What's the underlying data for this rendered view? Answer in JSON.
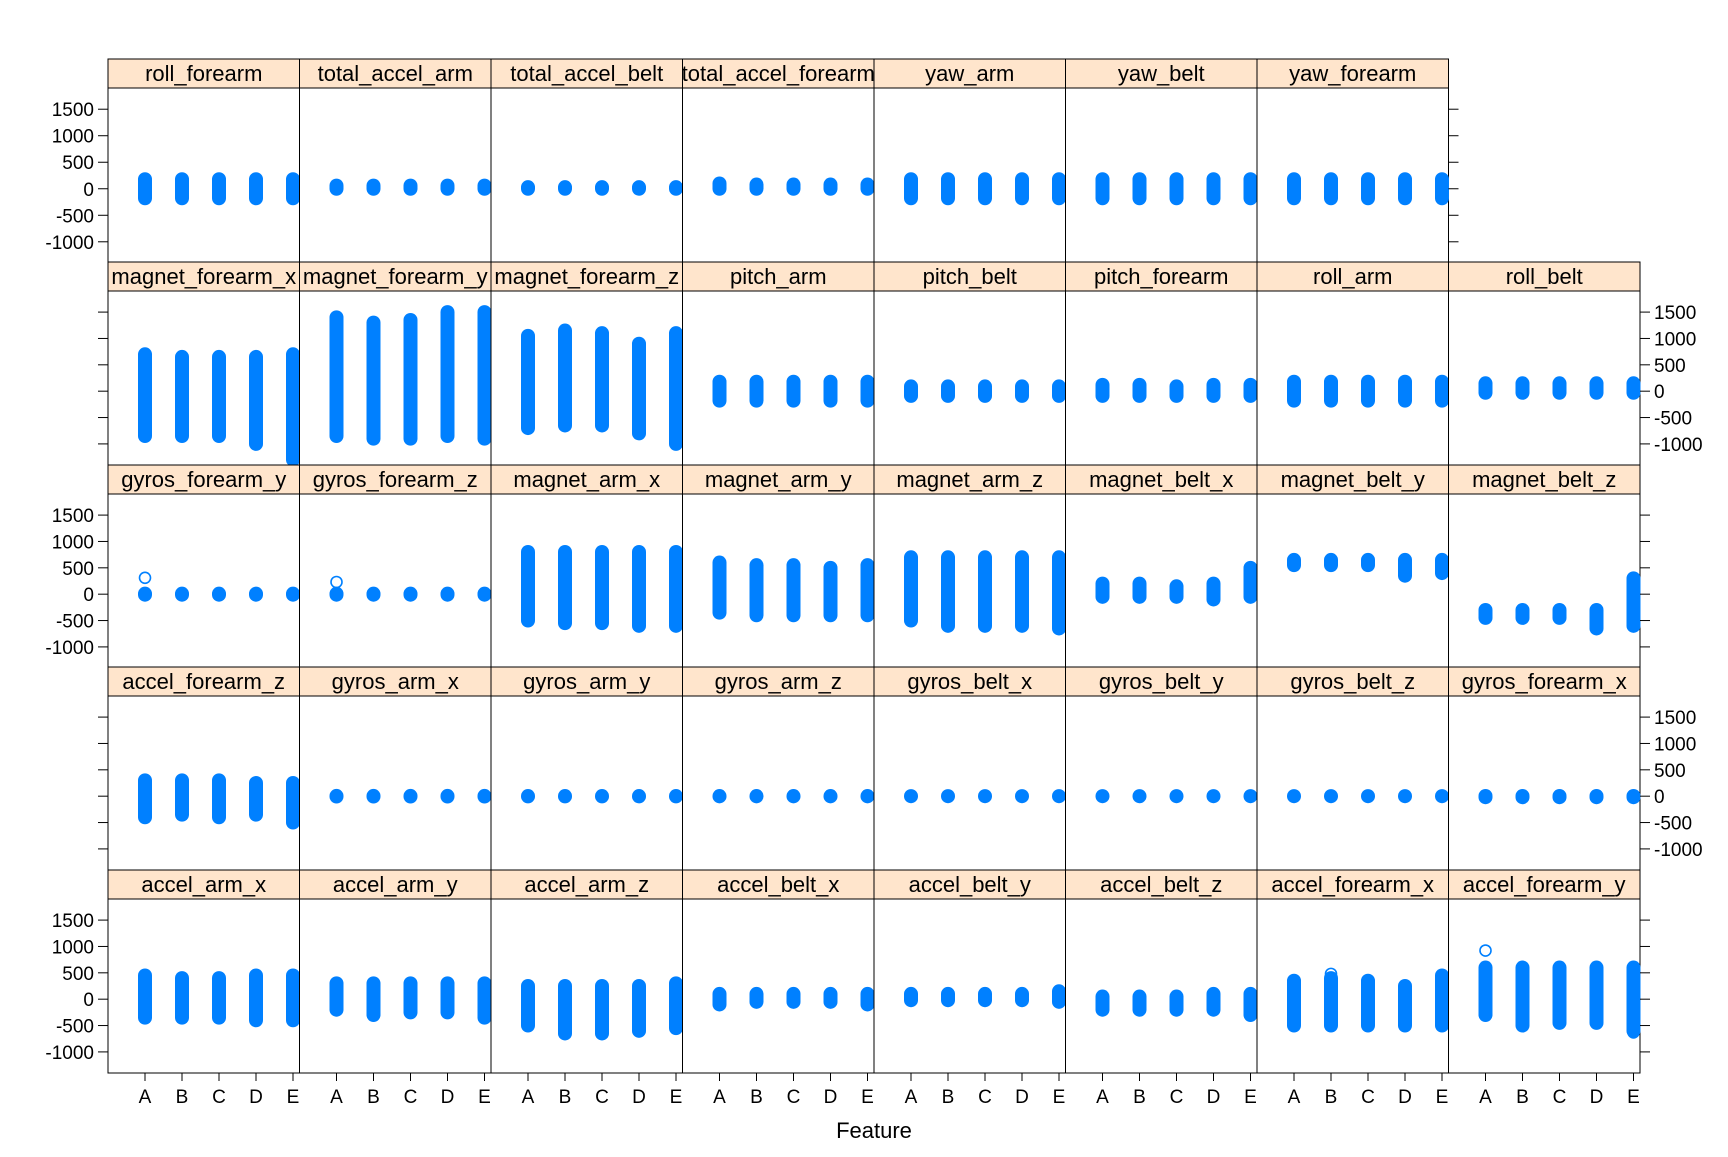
{
  "chart_data": {
    "type": "scatter",
    "layout": "lattice strip plot, 8 columns x 5 rows",
    "xlabel": "Feature",
    "categories": [
      "A",
      "B",
      "C",
      "D",
      "E"
    ],
    "ylim": [
      -1400,
      1900
    ],
    "yticks": [
      -1000,
      -500,
      0,
      500,
      1000,
      1500
    ],
    "colors": {
      "points": "#0080ff",
      "strip": "#ffe5cc",
      "frame": "#000000"
    },
    "panels": [
      {
        "name": "roll_forearm",
        "row": 1,
        "col": 1,
        "ranges": [
          [
            -180,
            180
          ],
          [
            -180,
            180
          ],
          [
            -180,
            180
          ],
          [
            -180,
            180
          ],
          [
            -180,
            180
          ]
        ]
      },
      {
        "name": "total_accel_arm",
        "row": 1,
        "col": 2,
        "ranges": [
          [
            0,
            60
          ],
          [
            0,
            60
          ],
          [
            0,
            60
          ],
          [
            0,
            60
          ],
          [
            0,
            60
          ]
        ]
      },
      {
        "name": "total_accel_belt",
        "row": 1,
        "col": 3,
        "ranges": [
          [
            0,
            30
          ],
          [
            0,
            30
          ],
          [
            0,
            30
          ],
          [
            0,
            30
          ],
          [
            0,
            30
          ]
        ]
      },
      {
        "name": "total_accel_forearm",
        "row": 1,
        "col": 4,
        "ranges": [
          [
            0,
            100
          ],
          [
            0,
            80
          ],
          [
            0,
            80
          ],
          [
            0,
            80
          ],
          [
            0,
            80
          ]
        ]
      },
      {
        "name": "yaw_arm",
        "row": 1,
        "col": 5,
        "ranges": [
          [
            -180,
            180
          ],
          [
            -180,
            180
          ],
          [
            -180,
            180
          ],
          [
            -180,
            180
          ],
          [
            -180,
            180
          ]
        ]
      },
      {
        "name": "yaw_belt",
        "row": 1,
        "col": 6,
        "ranges": [
          [
            -180,
            180
          ],
          [
            -180,
            180
          ],
          [
            -180,
            180
          ],
          [
            -180,
            180
          ],
          [
            -180,
            180
          ]
        ]
      },
      {
        "name": "yaw_forearm",
        "row": 1,
        "col": 7,
        "ranges": [
          [
            -180,
            180
          ],
          [
            -180,
            180
          ],
          [
            -180,
            180
          ],
          [
            -180,
            180
          ],
          [
            -180,
            180
          ]
        ]
      },
      {
        "name": "magnet_forearm_x",
        "row": 2,
        "col": 1,
        "ranges": [
          [
            -850,
            700
          ],
          [
            -850,
            650
          ],
          [
            -850,
            650
          ],
          [
            -1000,
            650
          ],
          [
            -1300,
            700
          ]
        ]
      },
      {
        "name": "magnet_forearm_y",
        "row": 2,
        "col": 2,
        "ranges": [
          [
            -850,
            1400
          ],
          [
            -900,
            1300
          ],
          [
            -900,
            1350
          ],
          [
            -850,
            1500
          ],
          [
            -900,
            1500
          ]
        ]
      },
      {
        "name": "magnet_forearm_z",
        "row": 2,
        "col": 3,
        "ranges": [
          [
            -700,
            1050
          ],
          [
            -650,
            1150
          ],
          [
            -650,
            1100
          ],
          [
            -800,
            900
          ],
          [
            -1000,
            1100
          ]
        ]
      },
      {
        "name": "pitch_arm",
        "row": 2,
        "col": 4,
        "ranges": [
          [
            -180,
            180
          ],
          [
            -180,
            180
          ],
          [
            -180,
            180
          ],
          [
            -180,
            180
          ],
          [
            -180,
            180
          ]
        ]
      },
      {
        "name": "pitch_belt",
        "row": 2,
        "col": 5,
        "ranges": [
          [
            -90,
            90
          ],
          [
            -90,
            90
          ],
          [
            -90,
            90
          ],
          [
            -90,
            90
          ],
          [
            -90,
            90
          ]
        ]
      },
      {
        "name": "pitch_forearm",
        "row": 2,
        "col": 6,
        "ranges": [
          [
            -90,
            120
          ],
          [
            -90,
            120
          ],
          [
            -90,
            90
          ],
          [
            -90,
            120
          ],
          [
            -90,
            120
          ]
        ]
      },
      {
        "name": "roll_arm",
        "row": 2,
        "col": 7,
        "ranges": [
          [
            -180,
            180
          ],
          [
            -180,
            180
          ],
          [
            -180,
            180
          ],
          [
            -180,
            180
          ],
          [
            -180,
            180
          ]
        ]
      },
      {
        "name": "roll_belt",
        "row": 2,
        "col": 8,
        "ranges": [
          [
            -30,
            150
          ],
          [
            -30,
            150
          ],
          [
            -30,
            150
          ],
          [
            -30,
            150
          ],
          [
            -30,
            150
          ]
        ]
      },
      {
        "name": "gyros_forearm_y",
        "row": 3,
        "col": 1,
        "ranges": [
          [
            -10,
            10
          ],
          [
            -10,
            10
          ],
          [
            -10,
            10
          ],
          [
            -10,
            10
          ],
          [
            -10,
            10
          ]
        ],
        "outliers": [
          [
            0,
            311
          ]
        ]
      },
      {
        "name": "gyros_forearm_z",
        "row": 3,
        "col": 2,
        "ranges": [
          [
            -10,
            10
          ],
          [
            -10,
            10
          ],
          [
            -10,
            10
          ],
          [
            -10,
            10
          ],
          [
            -10,
            10
          ]
        ],
        "outliers": [
          [
            0,
            231
          ]
        ]
      },
      {
        "name": "magnet_arm_x",
        "row": 3,
        "col": 3,
        "ranges": [
          [
            -500,
            800
          ],
          [
            -550,
            800
          ],
          [
            -550,
            800
          ],
          [
            -600,
            800
          ],
          [
            -600,
            800
          ]
        ]
      },
      {
        "name": "magnet_arm_y",
        "row": 3,
        "col": 4,
        "ranges": [
          [
            -350,
            600
          ],
          [
            -400,
            550
          ],
          [
            -400,
            550
          ],
          [
            -400,
            500
          ],
          [
            -400,
            550
          ]
        ]
      },
      {
        "name": "magnet_arm_z",
        "row": 3,
        "col": 5,
        "ranges": [
          [
            -500,
            700
          ],
          [
            -600,
            700
          ],
          [
            -600,
            700
          ],
          [
            -600,
            700
          ],
          [
            -650,
            700
          ]
        ]
      },
      {
        "name": "magnet_belt_x",
        "row": 3,
        "col": 6,
        "ranges": [
          [
            -50,
            200
          ],
          [
            -50,
            200
          ],
          [
            -50,
            150
          ],
          [
            -100,
            200
          ],
          [
            -50,
            500
          ]
        ]
      },
      {
        "name": "magnet_belt_y",
        "row": 3,
        "col": 7,
        "ranges": [
          [
            550,
            650
          ],
          [
            550,
            650
          ],
          [
            550,
            650
          ],
          [
            350,
            650
          ],
          [
            400,
            650
          ]
        ]
      },
      {
        "name": "magnet_belt_z",
        "row": 3,
        "col": 8,
        "ranges": [
          [
            -450,
            -300
          ],
          [
            -450,
            -300
          ],
          [
            -450,
            -300
          ],
          [
            -650,
            -300
          ],
          [
            -600,
            300
          ]
        ]
      },
      {
        "name": "accel_forearm_z",
        "row": 4,
        "col": 1,
        "ranges": [
          [
            -400,
            300
          ],
          [
            -350,
            300
          ],
          [
            -400,
            300
          ],
          [
            -350,
            250
          ],
          [
            -500,
            250
          ]
        ]
      },
      {
        "name": "gyros_arm_x",
        "row": 4,
        "col": 2,
        "ranges": [
          [
            -6,
            5
          ],
          [
            -6,
            5
          ],
          [
            -6,
            5
          ],
          [
            -6,
            5
          ],
          [
            -6,
            5
          ]
        ]
      },
      {
        "name": "gyros_arm_y",
        "row": 4,
        "col": 3,
        "ranges": [
          [
            -4,
            3
          ],
          [
            -4,
            3
          ],
          [
            -4,
            3
          ],
          [
            -4,
            3
          ],
          [
            -4,
            3
          ]
        ]
      },
      {
        "name": "gyros_arm_z",
        "row": 4,
        "col": 4,
        "ranges": [
          [
            -3,
            3
          ],
          [
            -3,
            3
          ],
          [
            -3,
            3
          ],
          [
            -3,
            3
          ],
          [
            -3,
            3
          ]
        ]
      },
      {
        "name": "gyros_belt_x",
        "row": 4,
        "col": 5,
        "ranges": [
          [
            -1,
            2
          ],
          [
            -1,
            2
          ],
          [
            -1,
            2
          ],
          [
            -1,
            2
          ],
          [
            -1,
            2
          ]
        ]
      },
      {
        "name": "gyros_belt_y",
        "row": 4,
        "col": 6,
        "ranges": [
          [
            -1,
            1
          ],
          [
            -1,
            1
          ],
          [
            -1,
            1
          ],
          [
            -1,
            1
          ],
          [
            -1,
            1
          ]
        ]
      },
      {
        "name": "gyros_belt_z",
        "row": 4,
        "col": 7,
        "ranges": [
          [
            -1,
            1
          ],
          [
            -1,
            1
          ],
          [
            -1,
            1
          ],
          [
            -1,
            1
          ],
          [
            -1,
            1
          ]
        ]
      },
      {
        "name": "gyros_forearm_x",
        "row": 4,
        "col": 8,
        "ranges": [
          [
            -20,
            4
          ],
          [
            -20,
            4
          ],
          [
            -20,
            4
          ],
          [
            -20,
            4
          ],
          [
            -20,
            4
          ]
        ]
      },
      {
        "name": "accel_arm_x",
        "row": 5,
        "col": 1,
        "ranges": [
          [
            -350,
            450
          ],
          [
            -350,
            400
          ],
          [
            -350,
            400
          ],
          [
            -400,
            450
          ],
          [
            -400,
            450
          ]
        ]
      },
      {
        "name": "accel_arm_y",
        "row": 5,
        "col": 2,
        "ranges": [
          [
            -200,
            300
          ],
          [
            -300,
            300
          ],
          [
            -250,
            300
          ],
          [
            -250,
            300
          ],
          [
            -350,
            300
          ]
        ]
      },
      {
        "name": "accel_arm_z",
        "row": 5,
        "col": 3,
        "ranges": [
          [
            -500,
            250
          ],
          [
            -650,
            250
          ],
          [
            -650,
            250
          ],
          [
            -600,
            250
          ],
          [
            -550,
            300
          ]
        ]
      },
      {
        "name": "accel_belt_x",
        "row": 5,
        "col": 4,
        "ranges": [
          [
            -100,
            100
          ],
          [
            -50,
            100
          ],
          [
            -50,
            100
          ],
          [
            -50,
            100
          ],
          [
            -100,
            100
          ]
        ]
      },
      {
        "name": "accel_belt_y",
        "row": 5,
        "col": 5,
        "ranges": [
          [
            -20,
            100
          ],
          [
            -20,
            100
          ],
          [
            -20,
            100
          ],
          [
            -20,
            100
          ],
          [
            -50,
            150
          ]
        ]
      },
      {
        "name": "accel_belt_z",
        "row": 5,
        "col": 6,
        "ranges": [
          [
            -200,
            50
          ],
          [
            -200,
            50
          ],
          [
            -200,
            50
          ],
          [
            -200,
            100
          ],
          [
            -300,
            100
          ]
        ]
      },
      {
        "name": "accel_forearm_x",
        "row": 5,
        "col": 7,
        "ranges": [
          [
            -500,
            350
          ],
          [
            -500,
            400
          ],
          [
            -500,
            350
          ],
          [
            -500,
            250
          ],
          [
            -500,
            450
          ]
        ],
        "outliers": [
          [
            1,
            480
          ]
        ]
      },
      {
        "name": "accel_forearm_y",
        "row": 5,
        "col": 8,
        "ranges": [
          [
            -300,
            600
          ],
          [
            -500,
            600
          ],
          [
            -450,
            600
          ],
          [
            -450,
            600
          ],
          [
            -600,
            600
          ]
        ],
        "outliers": [
          [
            0,
            923
          ],
          [
            4,
            -630
          ]
        ]
      }
    ]
  }
}
